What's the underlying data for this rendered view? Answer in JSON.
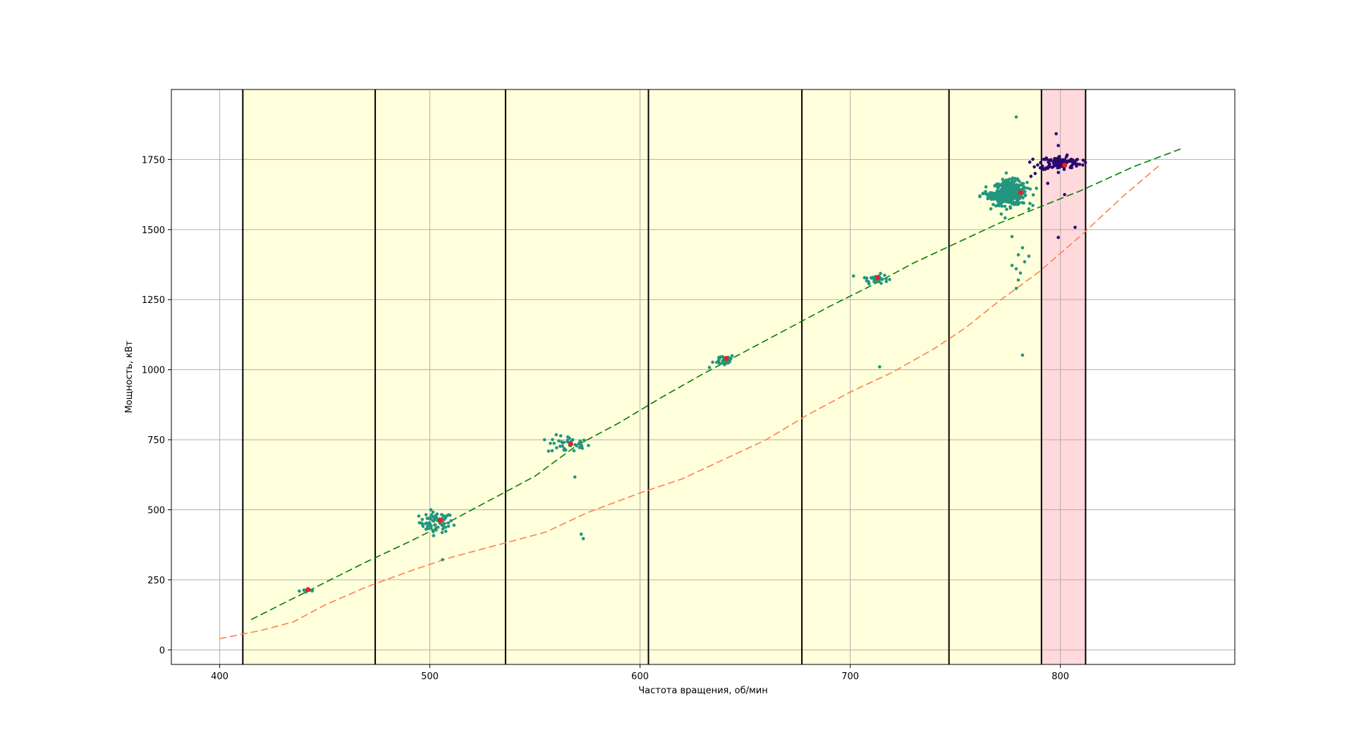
{
  "chart_data": {
    "type": "scatter",
    "title": "",
    "xlabel": "Частота вращения, об/мин",
    "ylabel": "Мощность, кВт",
    "xlim": [
      377,
      883
    ],
    "ylim": [
      -52,
      2000
    ],
    "xticks": [
      400,
      500,
      600,
      700,
      800
    ],
    "yticks": [
      0,
      250,
      500,
      750,
      1000,
      1250,
      1500,
      1750
    ],
    "grid": true,
    "legend": "none",
    "bands": [
      {
        "x0": 411,
        "x1": 474,
        "color": "#ffffdc",
        "role": "allowed"
      },
      {
        "x0": 474,
        "x1": 536,
        "color": "#ffffdc",
        "role": "allowed"
      },
      {
        "x0": 536,
        "x1": 604,
        "color": "#ffffdc",
        "role": "allowed"
      },
      {
        "x0": 604,
        "x1": 677,
        "color": "#ffffdc",
        "role": "allowed"
      },
      {
        "x0": 677,
        "x1": 747,
        "color": "#ffffdc",
        "role": "allowed"
      },
      {
        "x0": 747,
        "x1": 791,
        "color": "#ffffdc",
        "role": "allowed"
      },
      {
        "x0": 791,
        "x1": 812,
        "color": "#ffd9dc",
        "role": "forbidden"
      }
    ],
    "vlines": [
      411,
      474,
      536,
      604,
      677,
      747,
      791,
      812
    ],
    "curves": [
      {
        "style": "dashed",
        "color": "#008000",
        "x": [
          415,
          430,
          450,
          470,
          490,
          510,
          530,
          550,
          570,
          590,
          610,
          630,
          650,
          670,
          690,
          710,
          730,
          750,
          770,
          790,
          810,
          835,
          858
        ],
        "y": [
          108,
          165,
          240,
          315,
          385,
          460,
          540,
          620,
          730,
          810,
          900,
          985,
          1065,
          1145,
          1225,
          1300,
          1380,
          1450,
          1520,
          1580,
          1640,
          1725,
          1790
        ]
      },
      {
        "style": "dashed",
        "color": "#ff7f50",
        "x": [
          400,
          420,
          435,
          450,
          470,
          490,
          510,
          530,
          555,
          575,
          600,
          620,
          640,
          660,
          680,
          700,
          720,
          740,
          755,
          770,
          790,
          810,
          830,
          848
        ],
        "y": [
          40,
          70,
          100,
          160,
          225,
          280,
          330,
          370,
          420,
          490,
          560,
          610,
          680,
          750,
          840,
          920,
          990,
          1075,
          1150,
          1240,
          1350,
          1480,
          1620,
          1735
        ]
      }
    ],
    "clusters": [
      {
        "series": "teal",
        "color": "#23967f",
        "cx": 443,
        "cy": 212,
        "sx": 2.5,
        "sy": 4,
        "n": 10
      },
      {
        "series": "teal",
        "color": "#23967f",
        "cx": 503,
        "cy": 455,
        "sx": 4,
        "sy": 18,
        "n": 70
      },
      {
        "series": "teal",
        "color": "#23967f",
        "cx": 566,
        "cy": 733,
        "sx": 5,
        "sy": 16,
        "n": 45
      },
      {
        "series": "teal",
        "color": "#23967f",
        "cx": 640,
        "cy": 1035,
        "sx": 2.5,
        "sy": 10,
        "n": 35
      },
      {
        "series": "teal",
        "color": "#23967f",
        "cx": 712,
        "cy": 1325,
        "sx": 3,
        "sy": 8,
        "n": 35
      },
      {
        "series": "teal",
        "color": "#23967f",
        "cx": 776,
        "cy": 1630,
        "sx": 4,
        "sy": 22,
        "n": 360
      },
      {
        "series": "teal",
        "color": "#23967f",
        "cx": 769,
        "cy": 1620,
        "sx": 3.5,
        "sy": 7,
        "n": 80
      },
      {
        "series": "navy",
        "color": "#2a0a6e",
        "cx": 800,
        "cy": 1738,
        "sx": 5,
        "sy": 12,
        "n": 120
      }
    ],
    "outliers": [
      {
        "series": "teal",
        "x": 506,
        "y": 322
      },
      {
        "series": "teal",
        "x": 569,
        "y": 617
      },
      {
        "series": "teal",
        "x": 572,
        "y": 413
      },
      {
        "series": "teal",
        "x": 573,
        "y": 397
      },
      {
        "series": "teal",
        "x": 633,
        "y": 1008
      },
      {
        "series": "teal",
        "x": 714,
        "y": 1010
      },
      {
        "series": "teal",
        "x": 779,
        "y": 1902
      },
      {
        "series": "teal",
        "x": 782,
        "y": 1052
      },
      {
        "series": "teal",
        "x": 777,
        "y": 1475
      },
      {
        "series": "teal",
        "x": 780,
        "y": 1410
      },
      {
        "series": "teal",
        "x": 782,
        "y": 1435
      },
      {
        "series": "teal",
        "x": 785,
        "y": 1405
      },
      {
        "series": "teal",
        "x": 779,
        "y": 1360
      },
      {
        "series": "teal",
        "x": 781,
        "y": 1345
      },
      {
        "series": "teal",
        "x": 780,
        "y": 1320
      },
      {
        "series": "teal",
        "x": 779,
        "y": 1290
      },
      {
        "series": "teal",
        "x": 783,
        "y": 1385
      },
      {
        "series": "teal",
        "x": 777,
        "y": 1372
      },
      {
        "series": "navy",
        "x": 798,
        "y": 1842
      },
      {
        "series": "navy",
        "x": 799,
        "y": 1800
      },
      {
        "series": "navy",
        "x": 802,
        "y": 1625
      },
      {
        "series": "navy",
        "x": 807,
        "y": 1508
      },
      {
        "series": "navy",
        "x": 799,
        "y": 1472
      },
      {
        "series": "navy",
        "x": 794,
        "y": 1665
      },
      {
        "series": "navy",
        "x": 788,
        "y": 1700
      },
      {
        "series": "navy",
        "x": 792,
        "y": 1715
      },
      {
        "series": "navy",
        "x": 786,
        "y": 1690
      }
    ],
    "centroids": {
      "color": "#e8231f",
      "points": [
        {
          "x": 442,
          "y": 215
        },
        {
          "x": 505,
          "y": 462
        },
        {
          "x": 567,
          "y": 735
        },
        {
          "x": 641,
          "y": 1040
        },
        {
          "x": 713,
          "y": 1328
        },
        {
          "x": 781,
          "y": 1632
        },
        {
          "x": 802,
          "y": 1730
        }
      ]
    }
  }
}
